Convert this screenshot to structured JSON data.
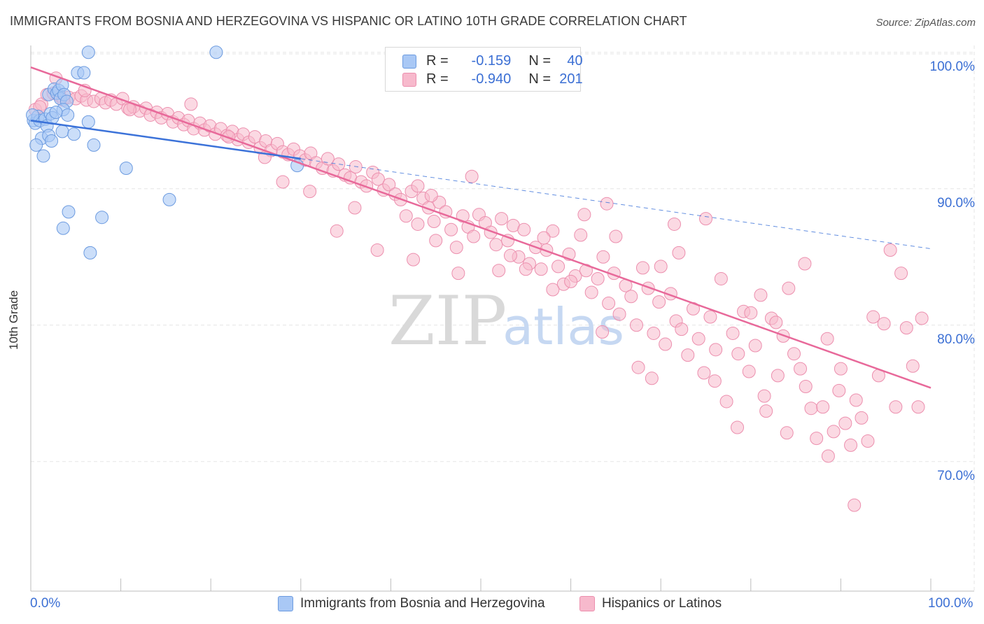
{
  "title": "IMMIGRANTS FROM BOSNIA AND HERZEGOVINA VS HISPANIC OR LATINO 10TH GRADE CORRELATION CHART",
  "source": "Source: ZipAtlas.com",
  "legend": {
    "r_label": "R =",
    "n_label": "N =",
    "series1": {
      "r": "-0.159",
      "n": "40"
    },
    "series2": {
      "r": "-0.940",
      "n": "201"
    }
  },
  "bottom_legend": {
    "series1": "Immigrants from Bosnia and Herzegovina",
    "series2": "Hispanics or Latinos"
  },
  "watermark": {
    "zip": "ZIP",
    "atlas": "atlas"
  },
  "colors": {
    "blue_fill": "#a9c8f5",
    "blue_stroke": "#6c9be0",
    "blue_line": "#3b72d9",
    "pink_fill": "#f7b9cc",
    "pink_stroke": "#ec8fae",
    "pink_line": "#e8699a",
    "axis_label": "#3b6fd4"
  },
  "chart_data": {
    "type": "scatter",
    "title": "IMMIGRANTS FROM BOSNIA AND HERZEGOVINA VS HISPANIC OR LATINO 10TH GRADE CORRELATION CHART",
    "xlabel": "",
    "ylabel": "10th Grade",
    "xlim": [
      0,
      100
    ],
    "ylim": [
      60.5,
      100.5
    ],
    "x_tick_labels": [
      "0.0%",
      "100.0%"
    ],
    "y_ticks": [
      70,
      80,
      90,
      100
    ],
    "y_tick_labels": [
      "70.0%",
      "80.0%",
      "90.0%",
      "100.0%"
    ],
    "grid": true,
    "series": [
      {
        "name": "Immigrants from Bosnia and Herzegovina",
        "r": -0.159,
        "n": 40,
        "trend": {
          "x": [
            0,
            30
          ],
          "y": [
            95.0,
            92.2
          ]
        },
        "trend_extension": {
          "x": [
            30,
            100
          ],
          "y": [
            92.2,
            85.6
          ]
        },
        "points": [
          [
            0.3,
            95.0
          ],
          [
            0.5,
            94.8
          ],
          [
            0.8,
            95.3
          ],
          [
            1.0,
            95.0
          ],
          [
            1.2,
            93.7
          ],
          [
            0.6,
            93.2
          ],
          [
            1.4,
            92.4
          ],
          [
            1.6,
            95.1
          ],
          [
            1.8,
            94.6
          ],
          [
            2.0,
            96.9
          ],
          [
            2.2,
            95.5
          ],
          [
            2.4,
            95.2
          ],
          [
            2.0,
            93.9
          ],
          [
            2.3,
            93.5
          ],
          [
            2.6,
            97.3
          ],
          [
            2.9,
            97.0
          ],
          [
            3.1,
            97.2
          ],
          [
            3.3,
            96.6
          ],
          [
            3.5,
            97.6
          ],
          [
            3.7,
            96.9
          ],
          [
            4.0,
            96.4
          ],
          [
            3.6,
            95.8
          ],
          [
            4.1,
            95.4
          ],
          [
            3.5,
            94.2
          ],
          [
            4.8,
            94.0
          ],
          [
            5.2,
            98.5
          ],
          [
            5.9,
            98.5
          ],
          [
            6.4,
            100.0
          ],
          [
            6.4,
            94.9
          ],
          [
            7.0,
            93.2
          ],
          [
            4.2,
            88.3
          ],
          [
            7.9,
            87.9
          ],
          [
            3.6,
            87.1
          ],
          [
            6.6,
            85.3
          ],
          [
            10.6,
            91.5
          ],
          [
            15.4,
            89.2
          ],
          [
            20.6,
            100.0
          ],
          [
            29.6,
            91.7
          ],
          [
            0.2,
            95.4
          ],
          [
            2.8,
            95.6
          ]
        ]
      },
      {
        "name": "Hispanics or Latinos",
        "r": -0.94,
        "n": 201,
        "trend": {
          "x": [
            0,
            100
          ],
          "y": [
            98.9,
            75.4
          ]
        },
        "points": [
          [
            0.5,
            95.8
          ],
          [
            1.2,
            96.2
          ],
          [
            1.8,
            96.9
          ],
          [
            2.5,
            97.0
          ],
          [
            3.2,
            96.8
          ],
          [
            3.6,
            96.5
          ],
          [
            4.2,
            96.7
          ],
          [
            5.0,
            96.6
          ],
          [
            5.6,
            96.8
          ],
          [
            6.2,
            96.5
          ],
          [
            7.0,
            96.4
          ],
          [
            7.8,
            96.6
          ],
          [
            8.3,
            96.3
          ],
          [
            8.9,
            96.5
          ],
          [
            9.5,
            96.2
          ],
          [
            10.2,
            96.6
          ],
          [
            10.8,
            95.9
          ],
          [
            11.4,
            96.0
          ],
          [
            12.1,
            95.7
          ],
          [
            12.8,
            95.9
          ],
          [
            13.3,
            95.4
          ],
          [
            14.0,
            95.6
          ],
          [
            14.5,
            95.2
          ],
          [
            15.2,
            95.5
          ],
          [
            15.8,
            94.9
          ],
          [
            16.4,
            95.2
          ],
          [
            17.0,
            94.7
          ],
          [
            17.5,
            95.0
          ],
          [
            18.1,
            94.4
          ],
          [
            18.8,
            94.8
          ],
          [
            19.3,
            94.3
          ],
          [
            19.9,
            94.6
          ],
          [
            20.5,
            94.0
          ],
          [
            21.1,
            94.4
          ],
          [
            21.8,
            93.9
          ],
          [
            22.4,
            94.2
          ],
          [
            23.0,
            93.6
          ],
          [
            23.6,
            94.0
          ],
          [
            24.2,
            93.4
          ],
          [
            24.9,
            93.8
          ],
          [
            25.5,
            93.0
          ],
          [
            26.1,
            93.5
          ],
          [
            26.7,
            92.8
          ],
          [
            27.4,
            93.3
          ],
          [
            28.0,
            92.7
          ],
          [
            28.6,
            92.5
          ],
          [
            29.2,
            92.9
          ],
          [
            29.9,
            92.4
          ],
          [
            30.5,
            92.1
          ],
          [
            31.1,
            92.6
          ],
          [
            31.7,
            91.9
          ],
          [
            32.4,
            91.5
          ],
          [
            33.0,
            92.2
          ],
          [
            33.6,
            91.3
          ],
          [
            34.2,
            91.8
          ],
          [
            34.9,
            91.0
          ],
          [
            35.5,
            90.8
          ],
          [
            36.1,
            91.6
          ],
          [
            36.7,
            90.5
          ],
          [
            37.3,
            90.2
          ],
          [
            38.0,
            91.2
          ],
          [
            38.6,
            90.7
          ],
          [
            39.2,
            89.9
          ],
          [
            39.8,
            90.3
          ],
          [
            40.5,
            89.6
          ],
          [
            41.1,
            89.2
          ],
          [
            41.7,
            88.0
          ],
          [
            42.3,
            89.8
          ],
          [
            43.0,
            87.4
          ],
          [
            43.6,
            89.3
          ],
          [
            44.2,
            88.6
          ],
          [
            44.8,
            87.6
          ],
          [
            45.4,
            89.0
          ],
          [
            46.1,
            88.3
          ],
          [
            46.7,
            87.0
          ],
          [
            47.3,
            85.7
          ],
          [
            48.0,
            88.0
          ],
          [
            48.6,
            87.2
          ],
          [
            49.2,
            86.5
          ],
          [
            49.8,
            88.1
          ],
          [
            50.5,
            87.5
          ],
          [
            51.1,
            86.8
          ],
          [
            51.7,
            85.9
          ],
          [
            52.3,
            87.8
          ],
          [
            53.0,
            86.2
          ],
          [
            53.6,
            87.3
          ],
          [
            54.2,
            85.0
          ],
          [
            54.8,
            87.0
          ],
          [
            55.4,
            84.5
          ],
          [
            56.1,
            85.7
          ],
          [
            56.7,
            84.1
          ],
          [
            57.3,
            85.5
          ],
          [
            58.0,
            86.9
          ],
          [
            58.6,
            84.3
          ],
          [
            59.2,
            83.0
          ],
          [
            59.8,
            85.2
          ],
          [
            60.5,
            83.6
          ],
          [
            61.1,
            86.6
          ],
          [
            61.7,
            84.0
          ],
          [
            62.3,
            82.4
          ],
          [
            63.0,
            83.4
          ],
          [
            63.6,
            85.0
          ],
          [
            64.2,
            81.6
          ],
          [
            64.8,
            83.8
          ],
          [
            65.4,
            80.8
          ],
          [
            66.1,
            82.9
          ],
          [
            66.7,
            82.1
          ],
          [
            67.3,
            80.0
          ],
          [
            68.0,
            84.2
          ],
          [
            68.6,
            82.7
          ],
          [
            69.2,
            79.4
          ],
          [
            69.8,
            81.7
          ],
          [
            70.5,
            78.6
          ],
          [
            71.1,
            82.3
          ],
          [
            71.7,
            80.3
          ],
          [
            72.3,
            79.7
          ],
          [
            73.0,
            77.8
          ],
          [
            73.6,
            81.2
          ],
          [
            74.2,
            79.0
          ],
          [
            74.8,
            76.5
          ],
          [
            75.5,
            80.6
          ],
          [
            76.1,
            78.2
          ],
          [
            76.7,
            83.4
          ],
          [
            77.3,
            74.4
          ],
          [
            78.0,
            79.4
          ],
          [
            78.6,
            77.9
          ],
          [
            79.2,
            81.0
          ],
          [
            79.8,
            76.6
          ],
          [
            80.5,
            78.5
          ],
          [
            81.1,
            82.2
          ],
          [
            81.7,
            73.7
          ],
          [
            82.3,
            80.5
          ],
          [
            83.0,
            76.3
          ],
          [
            83.6,
            79.2
          ],
          [
            84.2,
            82.7
          ],
          [
            84.8,
            77.9
          ],
          [
            85.5,
            76.8
          ],
          [
            86.1,
            75.5
          ],
          [
            86.7,
            73.9
          ],
          [
            87.3,
            71.7
          ],
          [
            88.0,
            74.0
          ],
          [
            88.6,
            70.4
          ],
          [
            89.2,
            72.2
          ],
          [
            89.8,
            75.2
          ],
          [
            90.5,
            72.8
          ],
          [
            91.1,
            71.2
          ],
          [
            91.7,
            74.5
          ],
          [
            92.3,
            73.2
          ],
          [
            93.0,
            71.5
          ],
          [
            93.6,
            80.6
          ],
          [
            94.2,
            76.3
          ],
          [
            94.8,
            80.1
          ],
          [
            95.5,
            85.5
          ],
          [
            96.1,
            74.0
          ],
          [
            96.7,
            83.8
          ],
          [
            97.3,
            79.8
          ],
          [
            98.0,
            77.0
          ],
          [
            98.6,
            74.0
          ],
          [
            91.5,
            66.8
          ],
          [
            99.0,
            80.5
          ],
          [
            84.0,
            72.1
          ],
          [
            78.5,
            72.5
          ],
          [
            90.0,
            76.8
          ],
          [
            86.0,
            84.5
          ],
          [
            70.0,
            84.3
          ],
          [
            60.0,
            83.2
          ],
          [
            57.0,
            86.4
          ],
          [
            45.0,
            86.2
          ],
          [
            42.5,
            84.8
          ],
          [
            52.0,
            84.0
          ],
          [
            47.5,
            83.8
          ],
          [
            38.5,
            85.5
          ],
          [
            36.0,
            88.6
          ],
          [
            34.0,
            86.9
          ],
          [
            31.0,
            89.8
          ],
          [
            28.0,
            90.5
          ],
          [
            49.0,
            90.9
          ],
          [
            65.0,
            86.5
          ],
          [
            72.0,
            85.3
          ],
          [
            75.0,
            87.8
          ],
          [
            80.0,
            80.9
          ],
          [
            88.5,
            79.0
          ],
          [
            81.5,
            74.8
          ],
          [
            69.0,
            76.1
          ],
          [
            63.5,
            79.5
          ],
          [
            67.5,
            76.9
          ],
          [
            55.0,
            84.1
          ],
          [
            61.5,
            88.1
          ],
          [
            43.0,
            90.2
          ],
          [
            26.0,
            92.3
          ],
          [
            22.0,
            93.8
          ],
          [
            17.8,
            96.2
          ],
          [
            11.0,
            95.8
          ],
          [
            6.0,
            97.2
          ],
          [
            2.8,
            98.1
          ],
          [
            1.0,
            96.0
          ],
          [
            44.5,
            89.5
          ],
          [
            53.3,
            85.1
          ],
          [
            58.0,
            82.6
          ],
          [
            64.0,
            88.9
          ],
          [
            71.5,
            87.4
          ],
          [
            76.0,
            75.9
          ],
          [
            82.8,
            80.2
          ]
        ]
      }
    ]
  }
}
